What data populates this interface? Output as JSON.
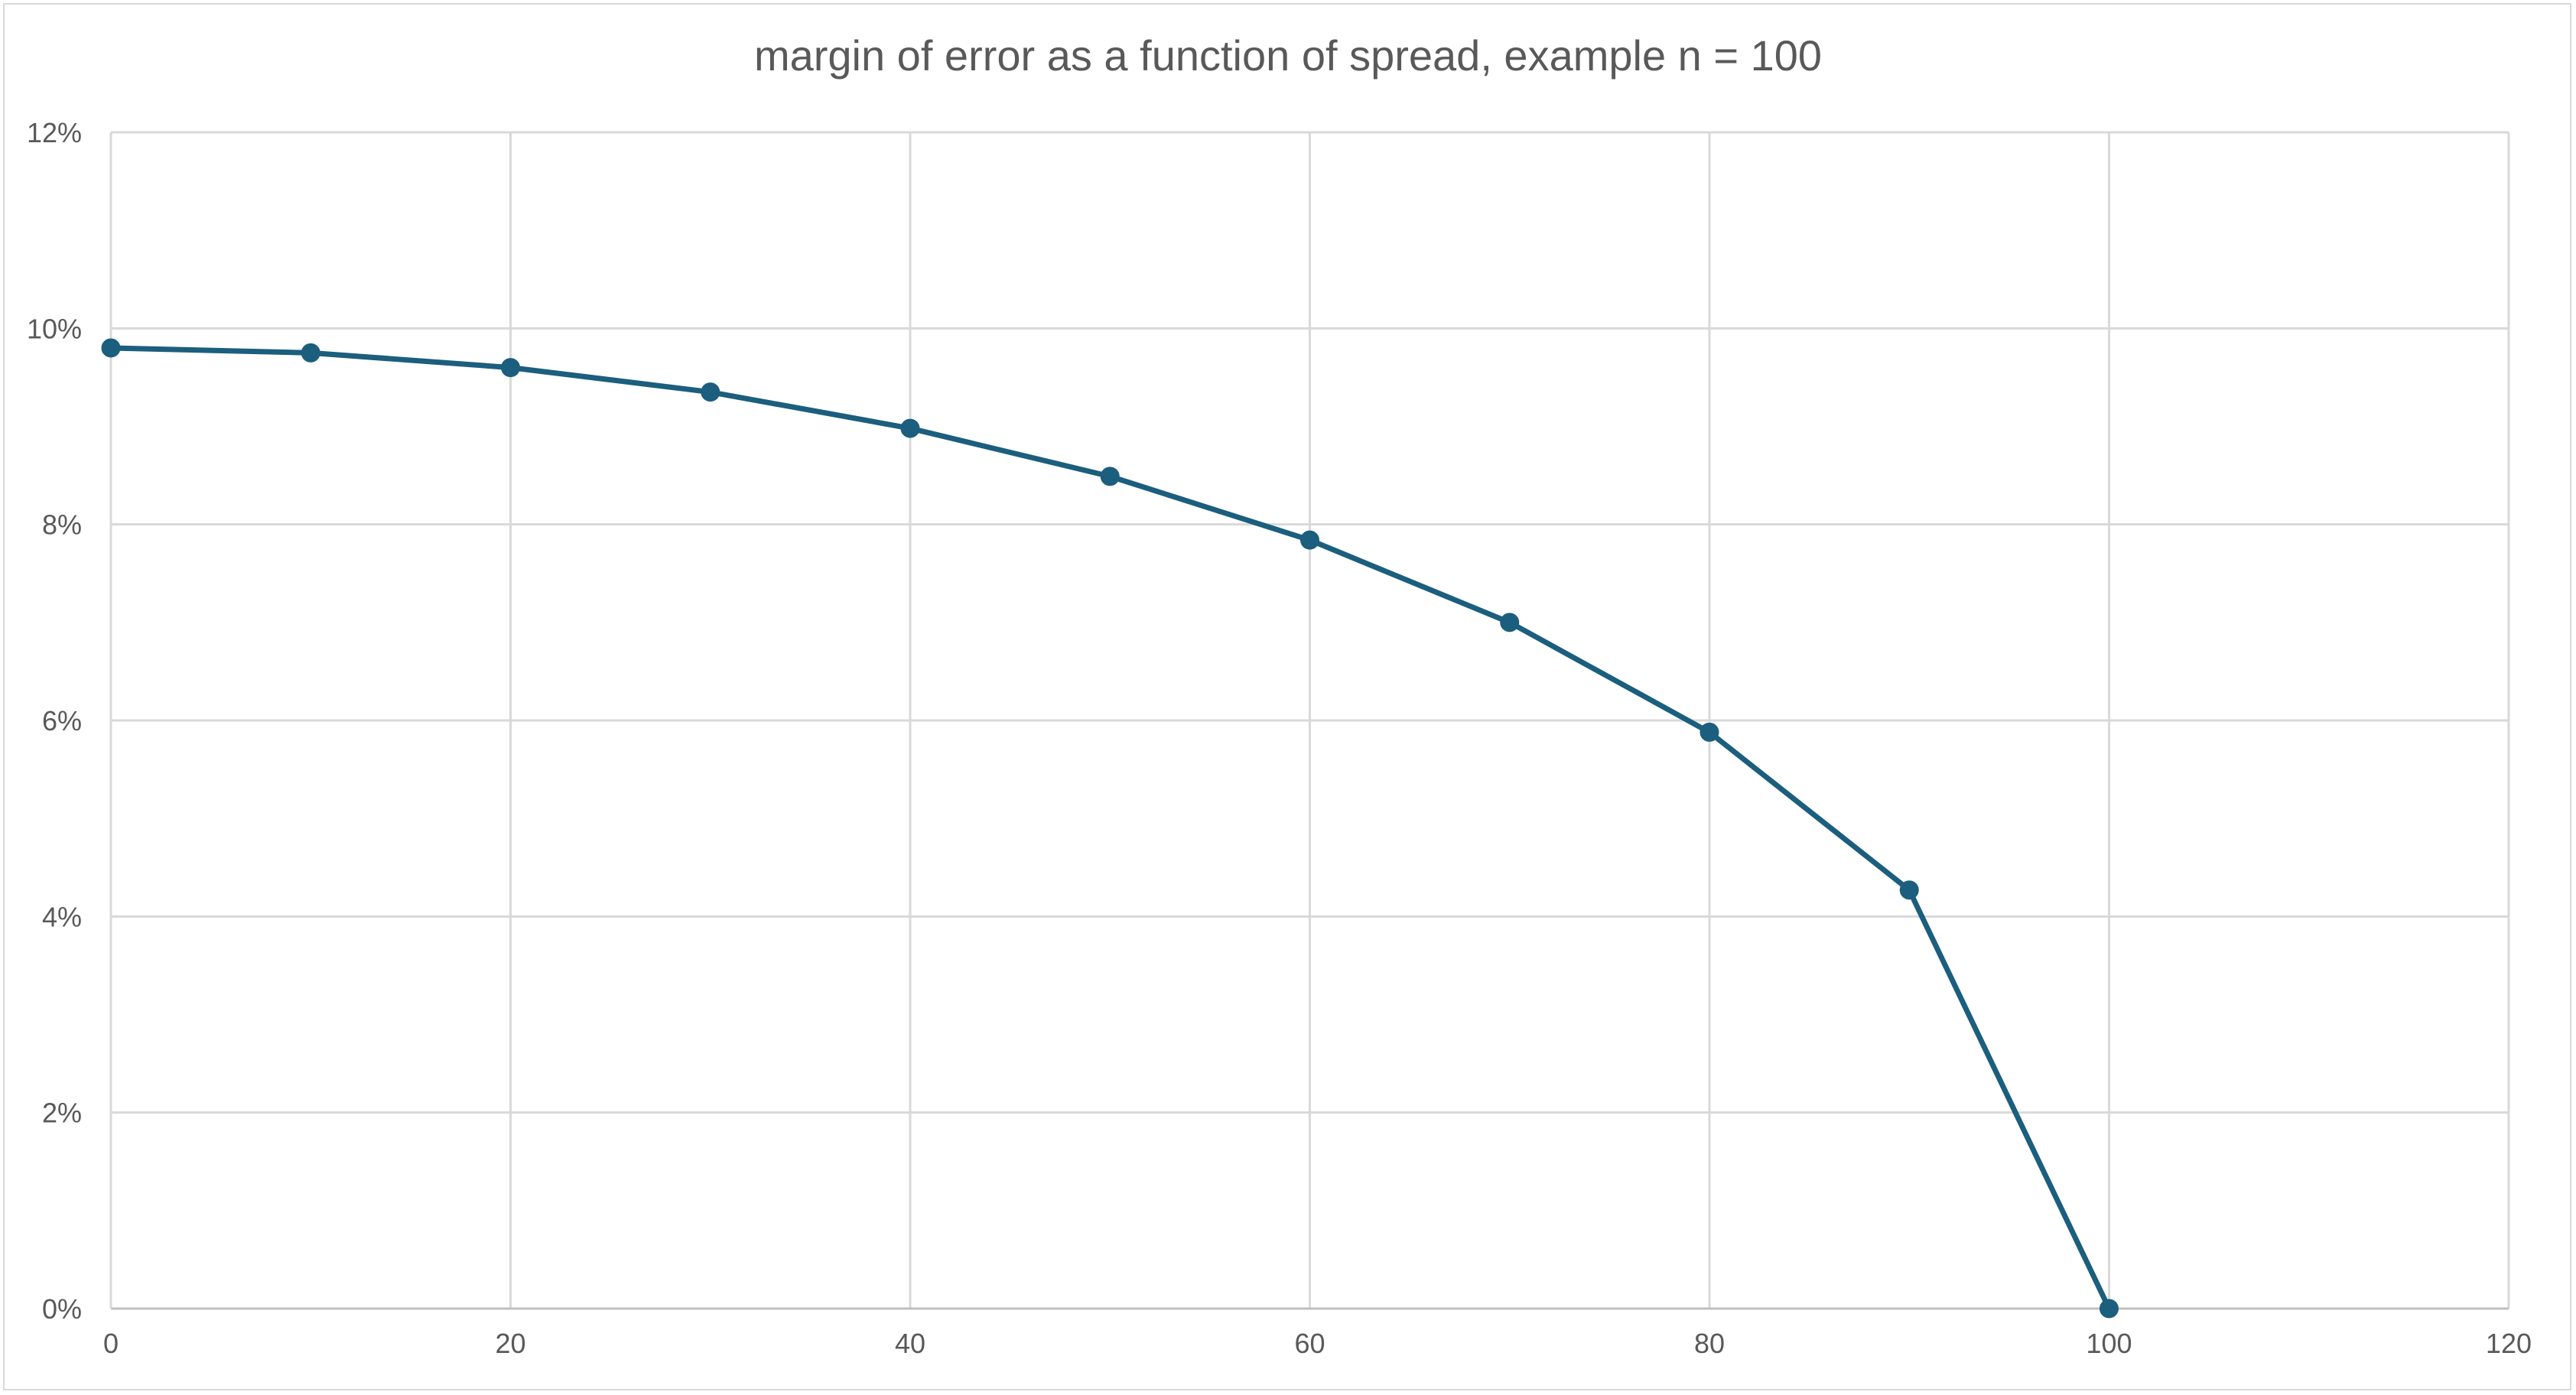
{
  "chart_data": {
    "type": "line",
    "title": "margin of error as a function of spread, example n = 100",
    "xlabel": "",
    "ylabel": "",
    "x": [
      0,
      10,
      20,
      30,
      40,
      50,
      60,
      70,
      80,
      90,
      100
    ],
    "series": [
      {
        "values": [
          0.098,
          0.0975,
          0.096,
          0.0935,
          0.0898,
          0.0849,
          0.0784,
          0.07,
          0.0588,
          0.0427,
          0.0
        ]
      }
    ],
    "xlim": [
      0,
      120
    ],
    "ylim": [
      0,
      0.12
    ],
    "x_ticks": [
      "0",
      "20",
      "40",
      "60",
      "80",
      "100",
      "120"
    ],
    "y_ticks": [
      "0%",
      "2%",
      "4%",
      "6%",
      "8%",
      "10%",
      "12%"
    ],
    "grid": true,
    "legend": "none",
    "colors": {
      "series": "#1b5e7e",
      "grid": "#d9d9d9",
      "text": "#595959"
    }
  }
}
